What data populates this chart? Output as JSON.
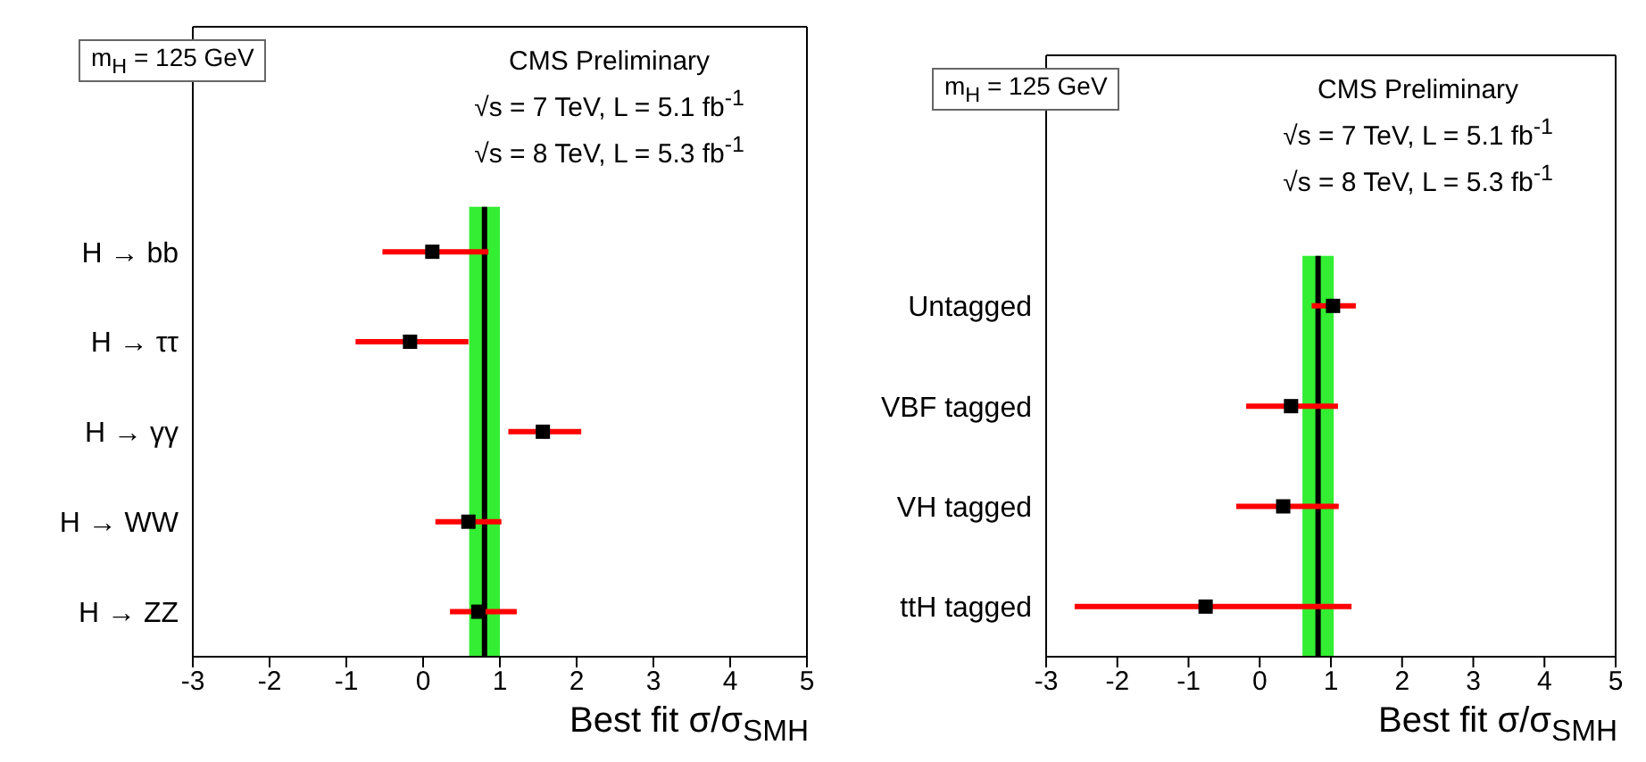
{
  "chart_data": [
    {
      "type": "scatter",
      "orientation": "horizontal",
      "marker": "square",
      "color": "#000000",
      "categories": [
        "H → bb",
        "H → ττ",
        "H → γγ",
        "H → WW",
        "H → ZZ"
      ],
      "values": [
        0.12,
        -0.17,
        1.56,
        0.59,
        0.72
      ],
      "errors": [
        [
          -0.53,
          0.85
        ],
        [
          -0.88,
          0.59
        ],
        [
          1.11,
          2.06
        ],
        [
          0.16,
          1.02
        ],
        [
          0.35,
          1.22
        ]
      ],
      "xlim": [
        -3,
        5
      ],
      "xticks": [
        -3,
        -2,
        -1,
        0,
        1,
        2,
        3,
        4,
        5
      ],
      "xlabel": "Best fit σ/σ$_{SMH}$",
      "ref_lines": [
        {
          "axis": "x",
          "value": 0.8,
          "color": "#000000"
        }
      ],
      "bands": [
        {
          "axis": "x",
          "from": 0.6,
          "to": 1.0,
          "color": "#33ee33"
        }
      ],
      "annotations": [
        "m$_{H}$ = 125 GeV",
        "CMS Preliminary",
        "√s = 7 TeV, L = 5.1 fb$^{-1}$",
        "√s = 8 TeV, L = 5.3 fb$^{-1}$"
      ]
    },
    {
      "type": "scatter",
      "orientation": "horizontal",
      "marker": "square",
      "color": "#000000",
      "categories": [
        "Untagged",
        "VBF tagged",
        "VH tagged",
        "ttH tagged"
      ],
      "values": [
        1.03,
        0.44,
        0.33,
        -0.76
      ],
      "errors": [
        [
          0.73,
          1.35
        ],
        [
          -0.19,
          1.1
        ],
        [
          -0.33,
          1.11
        ],
        [
          -2.6,
          1.29
        ]
      ],
      "xlim": [
        -3,
        5
      ],
      "xticks": [
        -3,
        -2,
        -1,
        0,
        1,
        2,
        3,
        4,
        5
      ],
      "xlabel": "Best fit σ/σ$_{SMH}$",
      "ref_lines": [
        {
          "axis": "x",
          "value": 0.82,
          "color": "#000000"
        }
      ],
      "bands": [
        {
          "axis": "x",
          "from": 0.6,
          "to": 1.04,
          "color": "#33ee33"
        }
      ],
      "annotations": [
        "m$_{H}$ = 125 GeV",
        "CMS Preliminary",
        "√s = 7 TeV, L = 5.1 fb$^{-1}$",
        "√s = 8 TeV, L = 5.3 fb$^{-1}$"
      ]
    }
  ]
}
